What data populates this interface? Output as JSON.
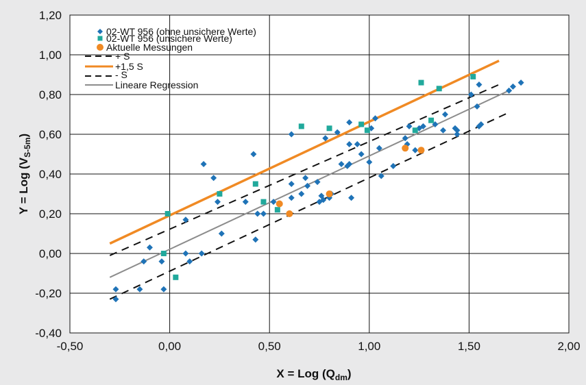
{
  "chart_data": {
    "type": "scatter",
    "xlabel": {
      "main": "X = Log (Q",
      "sub": "dm",
      "end": ")"
    },
    "ylabel": {
      "main": "Y = Log (V",
      "sub": "S-5m",
      "end": ")"
    },
    "xlim": [
      -0.5,
      2.0
    ],
    "ylim": [
      -0.4,
      1.2
    ],
    "x_ticks": [
      -0.5,
      0.0,
      0.5,
      1.0,
      1.5,
      2.0
    ],
    "x_tick_labels": [
      "-0,50",
      "0,00",
      "0,50",
      "1,00",
      "1,50",
      "2,00"
    ],
    "y_ticks": [
      -0.4,
      -0.2,
      0.0,
      0.2,
      0.4,
      0.6,
      0.8,
      1.0,
      1.2
    ],
    "y_tick_labels": [
      "-0,40",
      "-0,20",
      "0,00",
      "0,20",
      "0,40",
      "0,60",
      "0,80",
      "1,00",
      "1,20"
    ],
    "grid": true,
    "legend_position": "top-left",
    "colors": {
      "plot_background": "#ffffff",
      "page_background": "#e9e9ea",
      "blue": "#1f73b7",
      "teal": "#21a99c",
      "orange": "#f08a24",
      "gray": "#8c8c8c",
      "black": "#111111"
    },
    "series": [
      {
        "name": "02-WT 956 (ohne unsichere Werte)",
        "kind": "points",
        "marker": "diamond",
        "color": "#1f73b7",
        "points": [
          [
            -0.27,
            -0.18
          ],
          [
            -0.27,
            -0.23
          ],
          [
            -0.15,
            -0.18
          ],
          [
            -0.13,
            -0.04
          ],
          [
            -0.1,
            0.03
          ],
          [
            -0.04,
            -0.04
          ],
          [
            -0.03,
            -0.18
          ],
          [
            0.08,
            0.17
          ],
          [
            0.08,
            0.0
          ],
          [
            0.1,
            -0.04
          ],
          [
            0.16,
            0.0
          ],
          [
            0.17,
            0.45
          ],
          [
            0.22,
            0.38
          ],
          [
            0.24,
            0.26
          ],
          [
            0.26,
            0.1
          ],
          [
            0.38,
            0.26
          ],
          [
            0.42,
            0.5
          ],
          [
            0.43,
            0.07
          ],
          [
            0.44,
            0.2
          ],
          [
            0.47,
            0.2
          ],
          [
            0.52,
            0.26
          ],
          [
            0.61,
            0.6
          ],
          [
            0.61,
            0.28
          ],
          [
            0.61,
            0.35
          ],
          [
            0.66,
            0.3
          ],
          [
            0.68,
            0.38
          ],
          [
            0.69,
            0.34
          ],
          [
            0.74,
            0.36
          ],
          [
            0.75,
            0.26
          ],
          [
            0.76,
            0.29
          ],
          [
            0.77,
            0.27
          ],
          [
            0.78,
            0.58
          ],
          [
            0.8,
            0.28
          ],
          [
            0.81,
            0.3
          ],
          [
            0.84,
            0.61
          ],
          [
            0.86,
            0.45
          ],
          [
            0.89,
            0.44
          ],
          [
            0.9,
            0.55
          ],
          [
            0.9,
            0.66
          ],
          [
            0.9,
            0.45
          ],
          [
            0.91,
            0.28
          ],
          [
            0.94,
            0.55
          ],
          [
            0.96,
            0.5
          ],
          [
            1.0,
            0.46
          ],
          [
            1.01,
            0.63
          ],
          [
            1.03,
            0.68
          ],
          [
            1.05,
            0.53
          ],
          [
            1.06,
            0.39
          ],
          [
            1.12,
            0.44
          ],
          [
            1.18,
            0.58
          ],
          [
            1.19,
            0.55
          ],
          [
            1.2,
            0.64
          ],
          [
            1.23,
            0.52
          ],
          [
            1.25,
            0.63
          ],
          [
            1.27,
            0.64
          ],
          [
            1.33,
            0.65
          ],
          [
            1.37,
            0.62
          ],
          [
            1.38,
            0.7
          ],
          [
            1.43,
            0.63
          ],
          [
            1.44,
            0.6
          ],
          [
            1.44,
            0.62
          ],
          [
            1.51,
            0.8
          ],
          [
            1.54,
            0.74
          ],
          [
            1.55,
            0.85
          ],
          [
            1.55,
            0.64
          ],
          [
            1.56,
            0.65
          ],
          [
            1.7,
            0.82
          ],
          [
            1.72,
            0.84
          ],
          [
            1.76,
            0.86
          ]
        ]
      },
      {
        "name": "02-WT 956 (unsichere Werte)",
        "kind": "points",
        "marker": "square",
        "color": "#21a99c",
        "points": [
          [
            -0.01,
            0.2
          ],
          [
            -0.03,
            0.0
          ],
          [
            0.03,
            -0.12
          ],
          [
            0.25,
            0.3
          ],
          [
            0.43,
            0.35
          ],
          [
            0.47,
            0.26
          ],
          [
            0.54,
            0.22
          ],
          [
            0.66,
            0.64
          ],
          [
            0.8,
            0.63
          ],
          [
            0.96,
            0.65
          ],
          [
            0.99,
            0.62
          ],
          [
            1.23,
            0.62
          ],
          [
            1.26,
            0.86
          ],
          [
            1.31,
            0.67
          ],
          [
            1.35,
            0.83
          ],
          [
            1.52,
            0.89
          ]
        ]
      },
      {
        "name": "Aktuelle Messungen",
        "kind": "points",
        "marker": "circle",
        "color": "#f08a24",
        "points": [
          [
            0.55,
            0.25
          ],
          [
            0.6,
            0.2
          ],
          [
            0.8,
            0.3
          ],
          [
            1.18,
            0.53
          ],
          [
            1.26,
            0.52
          ]
        ]
      },
      {
        "name": "+ S",
        "kind": "line",
        "style": "dashed",
        "color": "#111111",
        "points": [
          [
            -0.3,
            -0.01
          ],
          [
            1.65,
            0.85
          ]
        ]
      },
      {
        "name": "+1,5 S",
        "kind": "line",
        "style": "solid-thick",
        "color": "#f08a24",
        "points": [
          [
            -0.3,
            0.05
          ],
          [
            1.65,
            0.97
          ]
        ]
      },
      {
        "name": "- S",
        "kind": "line",
        "style": "dashed",
        "color": "#111111",
        "points": [
          [
            -0.3,
            -0.23
          ],
          [
            1.7,
            0.71
          ]
        ]
      },
      {
        "name": "Lineare Regression",
        "kind": "line",
        "style": "solid",
        "color": "#8c8c8c",
        "points": [
          [
            -0.3,
            -0.12
          ],
          [
            1.7,
            0.82
          ]
        ]
      }
    ]
  }
}
